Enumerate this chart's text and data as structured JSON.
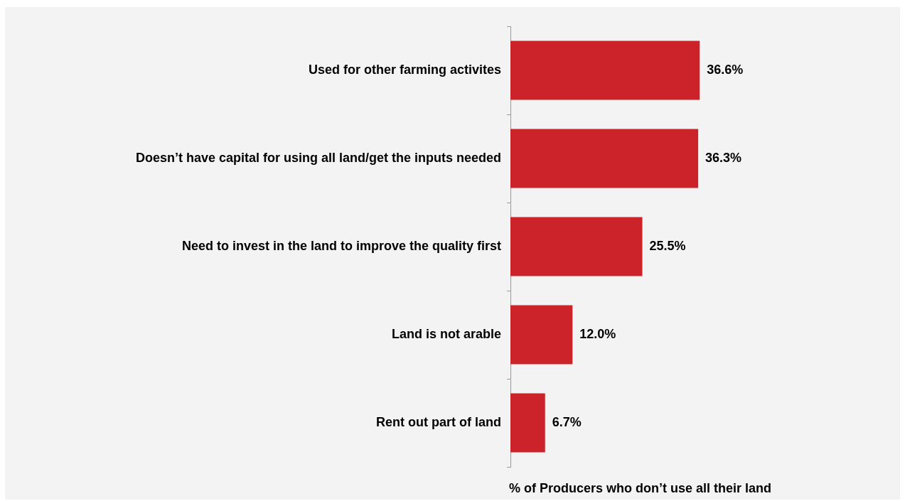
{
  "chart_data": {
    "type": "bar",
    "orientation": "horizontal",
    "xlabel": "% of Producers who don’t use all their land",
    "categories": [
      "Used for other farming activites",
      "Doesn’t have capital for using all land/get the inputs needed",
      "Need to invest in the land to improve the quality first",
      "Land is not arable",
      "Rent out part of land"
    ],
    "values": [
      36.6,
      36.3,
      25.5,
      12.0,
      6.7
    ],
    "value_labels": [
      "36.6%",
      "36.3%",
      "25.5%",
      "12.0%",
      "6.7%"
    ],
    "color": "#cc2229",
    "legend": false,
    "grid": false
  }
}
